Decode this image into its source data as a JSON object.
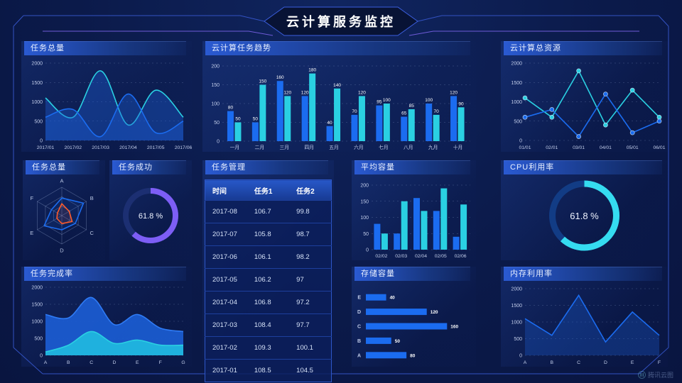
{
  "page": {
    "title": "云计算服务监控",
    "watermark": "腾讯云图"
  },
  "panels": {
    "tasksTotal": {
      "title": "任务总量"
    },
    "trend": {
      "title": "云计算任务趋势"
    },
    "resources": {
      "title": "云计算总资源"
    },
    "radar": {
      "title": "任务总量"
    },
    "success": {
      "title": "任务成功"
    },
    "manage": {
      "title": "任务管理"
    },
    "avg": {
      "title": "平均容量"
    },
    "cpu": {
      "title": "CPU利用率"
    },
    "completion": {
      "title": "任务完成率"
    },
    "storage": {
      "title": "存储容量"
    },
    "memory": {
      "title": "内存利用率"
    }
  },
  "table": {
    "columns": [
      "时间",
      "任务1",
      "任务2"
    ],
    "rows": [
      [
        "2017-08",
        "106.7",
        "99.8"
      ],
      [
        "2017-07",
        "105.8",
        "98.7"
      ],
      [
        "2017-06",
        "106.1",
        "98.2"
      ],
      [
        "2017-05",
        "106.2",
        "97"
      ],
      [
        "2017-04",
        "106.8",
        "97.2"
      ],
      [
        "2017-03",
        "108.4",
        "97.7"
      ],
      [
        "2017-02",
        "109.3",
        "100.1"
      ],
      [
        "2017-01",
        "108.5",
        "104.5"
      ]
    ]
  },
  "colors": {
    "blue": "#1b6cf0",
    "cyan": "#2ad0e2",
    "purple": "#7d5ef5",
    "orange": "#ff5a2a",
    "accent_line": "#3352c2",
    "grid": "rgba(150,172,215,0.42)"
  },
  "chart_data": [
    {
      "id": "tasksTotalLine",
      "type": "area",
      "title": "任务总量",
      "x": [
        "2017/01",
        "2017/02",
        "2017/03",
        "2017/04",
        "2017/05",
        "2017/06"
      ],
      "series": [
        {
          "name": "cyan",
          "color": "#2ad0e2",
          "values": [
            1100,
            600,
            1800,
            400,
            1300,
            600
          ]
        },
        {
          "name": "blue",
          "color": "#1b6cf0",
          "values": [
            600,
            800,
            100,
            1200,
            200,
            500
          ]
        }
      ],
      "ylim": [
        0,
        2000
      ],
      "ystep": 500,
      "smooth": true,
      "fill": "rgba(30,95,215,0.38)"
    },
    {
      "id": "taskTrendBars",
      "type": "bar",
      "title": "云计算任务趋势",
      "categories": [
        "一月",
        "二月",
        "三月",
        "四月",
        "五月",
        "六月",
        "七月",
        "八月",
        "九月",
        "十月"
      ],
      "series": [
        {
          "name": "blue",
          "color": "#1b6cf0",
          "values": [
            80,
            50,
            160,
            120,
            40,
            70,
            95,
            65,
            100,
            120
          ]
        },
        {
          "name": "cyan",
          "color": "#2ad0e2",
          "values": [
            50,
            150,
            120,
            180,
            140,
            120,
            100,
            85,
            70,
            90
          ]
        }
      ],
      "ylim": [
        0,
        200
      ],
      "ystep": 50,
      "value_labels": true
    },
    {
      "id": "totalResourcesLine",
      "type": "line",
      "title": "云计算总资源",
      "x": [
        "01/01",
        "02/01",
        "03/01",
        "04/01",
        "05/01",
        "06/01"
      ],
      "series": [
        {
          "name": "cyan",
          "color": "#2ad0e2",
          "values": [
            1100,
            600,
            1800,
            400,
            1300,
            600
          ]
        },
        {
          "name": "blue",
          "color": "#1b6cf0",
          "values": [
            600,
            800,
            100,
            1200,
            200,
            500
          ]
        }
      ],
      "ylim": [
        0,
        2000
      ],
      "ystep": 500,
      "markers": true
    },
    {
      "id": "tasksRadar",
      "type": "radar",
      "title": "任务总量",
      "axes": [
        "A",
        "B",
        "C",
        "D",
        "E",
        "F"
      ],
      "max": 100,
      "series": [
        {
          "name": "blue",
          "color": "#1b6cf0",
          "values": [
            62,
            88,
            55,
            50,
            72,
            42
          ]
        },
        {
          "name": "orange",
          "color": "#ff5a2a",
          "values": [
            42,
            30,
            42,
            28,
            20,
            18
          ]
        }
      ]
    },
    {
      "id": "taskSuccessDonut",
      "type": "donut",
      "title": "任务成功",
      "value": 61.8,
      "label": "61.8 %",
      "color": "#7d5ef5",
      "track": "#1c2f72"
    },
    {
      "id": "avgCapacityBars",
      "type": "bar",
      "title": "平均容量",
      "categories": [
        "02/02",
        "02/03",
        "02/04",
        "02/05",
        "02/06"
      ],
      "series": [
        {
          "name": "blue",
          "color": "#1b6cf0",
          "values": [
            80,
            50,
            160,
            120,
            40
          ]
        },
        {
          "name": "cyan",
          "color": "#2ad0e2",
          "values": [
            50,
            150,
            120,
            190,
            140
          ]
        }
      ],
      "ylim": [
        0,
        200
      ],
      "ystep": 50,
      "value_labels": false
    },
    {
      "id": "cpuDonut",
      "type": "donut",
      "title": "CPU利用率",
      "value": 61.8,
      "label": "61.8 %",
      "color": "#35dcf0",
      "track": "#123c85"
    },
    {
      "id": "completionArea",
      "type": "area",
      "title": "任务完成率",
      "x": [
        "A",
        "B",
        "C",
        "D",
        "E",
        "F",
        "G"
      ],
      "series": [
        {
          "name": "blue",
          "color": "#2f7bf5",
          "fill": "#1b5cd2",
          "values": [
            1200,
            1100,
            1700,
            900,
            1200,
            800,
            700
          ]
        },
        {
          "name": "cyan",
          "color": "#2ad0e2",
          "fill": "#1fb9e0",
          "values": [
            100,
            300,
            700,
            350,
            450,
            300,
            300
          ]
        }
      ],
      "ylim": [
        0,
        2000
      ],
      "ystep": 500,
      "smooth": true,
      "solid": true
    },
    {
      "id": "storageBars",
      "type": "hbar",
      "title": "存储容量",
      "categories": [
        "E",
        "D",
        "C",
        "B",
        "A"
      ],
      "values": [
        40,
        120,
        160,
        50,
        80
      ],
      "color": "#1b6cf0",
      "xmax": 175
    },
    {
      "id": "memoryLine",
      "type": "line",
      "title": "内存利用率",
      "x": [
        "A",
        "B",
        "C",
        "D",
        "E",
        "F"
      ],
      "series": [
        {
          "name": "blue",
          "color": "#1b6cf0",
          "values": [
            1100,
            600,
            1800,
            400,
            1300,
            600
          ]
        }
      ],
      "ylim": [
        0,
        2000
      ],
      "ystep": 500,
      "fill": "rgba(27,92,210,0.32)"
    }
  ]
}
